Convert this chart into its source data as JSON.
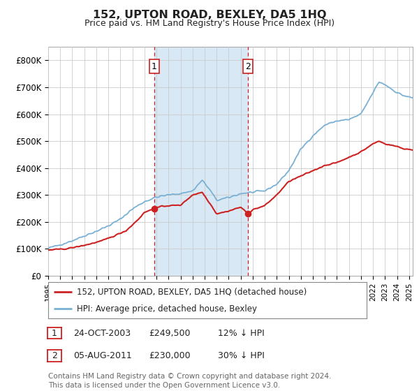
{
  "title": "152, UPTON ROAD, BEXLEY, DA5 1HQ",
  "subtitle": "Price paid vs. HM Land Registry's House Price Index (HPI)",
  "ylim": [
    0,
    850000
  ],
  "yticks": [
    0,
    100000,
    200000,
    300000,
    400000,
    500000,
    600000,
    700000,
    800000
  ],
  "ytick_labels": [
    "£0",
    "£100K",
    "£200K",
    "£300K",
    "£400K",
    "£500K",
    "£600K",
    "£700K",
    "£800K"
  ],
  "hpi_color": "#7ab0d4",
  "price_color": "#cc2222",
  "annotation_color": "#cc2222",
  "shade_color": "#d8e8f5",
  "bg_color": "#ffffff",
  "grid_color": "#cccccc",
  "sale1_date": "24-OCT-2003",
  "sale1_price": 249500,
  "sale2_date": "05-AUG-2011",
  "sale2_price": 230000,
  "sale1_hpi_pct": "12% ↓ HPI",
  "sale2_hpi_pct": "30% ↓ HPI",
  "legend_line1": "152, UPTON ROAD, BEXLEY, DA5 1HQ (detached house)",
  "legend_line2": "HPI: Average price, detached house, Bexley",
  "footer": "Contains HM Land Registry data © Crown copyright and database right 2024.\nThis data is licensed under the Open Government Licence v3.0.",
  "sale1_x": 2003.81,
  "sale2_x": 2011.59,
  "xmin": 1995.0,
  "xmax": 2025.3
}
